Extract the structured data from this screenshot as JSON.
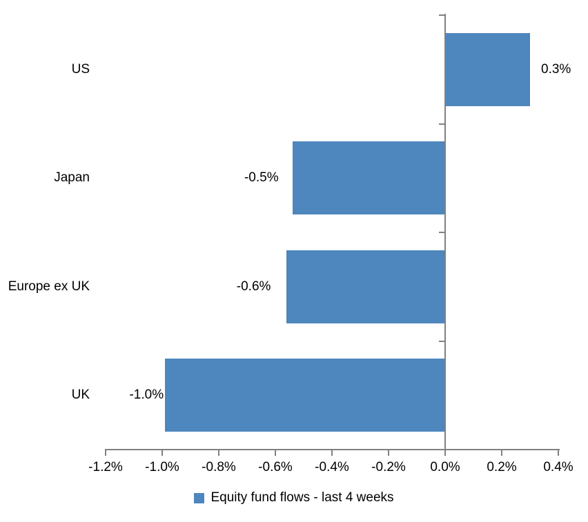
{
  "chart_data": {
    "type": "bar",
    "orientation": "horizontal",
    "title": "",
    "xlabel": "",
    "ylabel": "",
    "categories": [
      "US",
      "Japan",
      "Europe ex UK",
      "UK"
    ],
    "series": [
      {
        "name": "Equity fund flows - last 4 weeks",
        "values": [
          0.3,
          -0.5,
          -0.6,
          -1.0
        ],
        "values_as_drawn": [
          0.3,
          -0.54,
          -0.56,
          -0.99
        ],
        "data_labels": [
          "0.3%",
          "-0.5%",
          "-0.6%",
          "-1.0%"
        ]
      }
    ],
    "x_axis": {
      "min": -1.2,
      "max": 0.4,
      "tick_step": 0.2,
      "tick_values": [
        -1.2,
        -1.0,
        -0.8,
        -0.6,
        -0.4,
        -0.2,
        0.0,
        0.2,
        0.4
      ],
      "tick_labels": [
        "-1.2%",
        "-1.0%",
        "-0.8%",
        "-0.6%",
        "-0.4%",
        "-0.2%",
        "0.0%",
        "0.2%",
        "0.4%"
      ]
    },
    "grid": false,
    "legend": {
      "position": "bottom-center",
      "entries": [
        {
          "label": "Equity fund flows - last 4 weeks",
          "swatch": "blue-square"
        }
      ]
    },
    "colors": {
      "bar": "#4E86BE",
      "axis": "#808080",
      "text": "#000000",
      "background": "#FFFFFF"
    }
  }
}
